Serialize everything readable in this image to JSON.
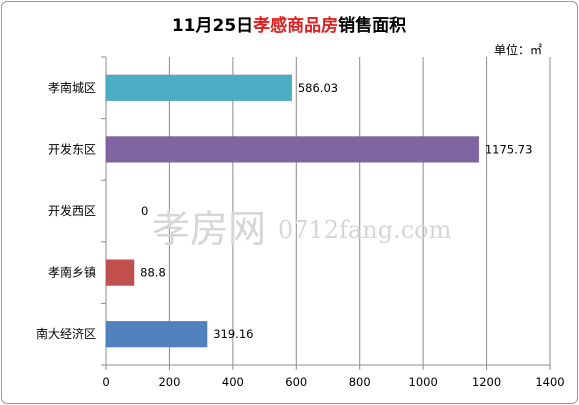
{
  "chart_data": {
    "type": "bar",
    "orientation": "horizontal",
    "title_parts": [
      {
        "text": "11月25日",
        "color": "#000000"
      },
      {
        "text": "孝感商品房",
        "color": "#e02020"
      },
      {
        "text": "销售面积",
        "color": "#000000"
      }
    ],
    "unit": "单位：㎡",
    "categories": [
      "孝南城区",
      "开发东区",
      "开发西区",
      "孝南乡镇",
      "南大经济区"
    ],
    "values": [
      586.03,
      1175.73,
      0,
      88.8,
      319.16
    ],
    "value_labels": [
      "586.03",
      "1175.73",
      "0",
      "88.8",
      "319.16"
    ],
    "colors": [
      "#4bacc6",
      "#8064a2",
      "#9bbb59",
      "#c0504d",
      "#4f81bd"
    ],
    "xlim": [
      0,
      1400
    ],
    "x_ticks": [
      "0",
      "200",
      "400",
      "600",
      "800",
      "1000",
      "1200",
      "1400"
    ],
    "grid": "vertical",
    "legend": "none"
  },
  "watermark": {
    "cn": "孝房网",
    "domain": "0712fang.com"
  }
}
